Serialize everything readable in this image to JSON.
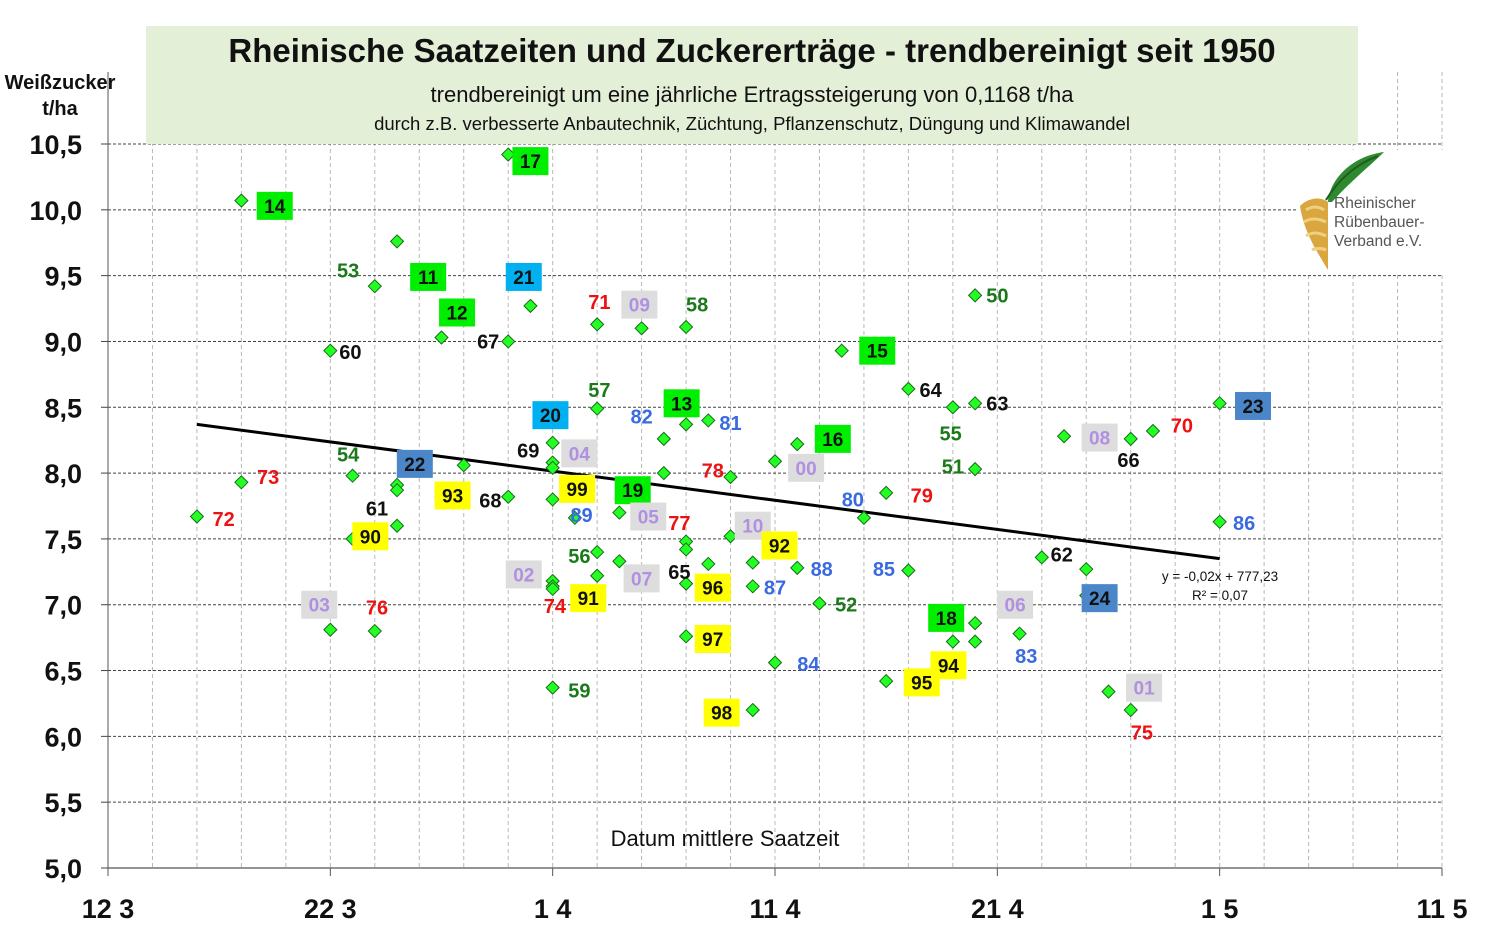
{
  "title": "Rheinische Saatzeiten und Zuckererträge - trendbereinigt seit 1950",
  "subtitle1": "trendbereinigt um eine jährliche Ertragssteigerung von 0,1168 t/ha",
  "subtitle2": "durch z.B. verbesserte Anbautechnik, Züchtung, Pflanzenschutz, Düngung und Klimawandel",
  "ylabel_line1": "Weißzucker",
  "ylabel_line2": "t/ha",
  "xlabel": "Datum mittlere Saatzeit",
  "equation": "y = -0,02x + 777,23",
  "r_squared": "R² = 0,07",
  "logo": {
    "line1": "Rheinischer",
    "line2": "Rübenbauer-",
    "line3": "Verband e.V."
  },
  "colors": {
    "marker": "#22ff22",
    "trend": "#000000",
    "red": "#ee1111",
    "green": "#1a7a1a",
    "blue": "#3a6ae0",
    "black": "#111111",
    "lavender": "#b090e0",
    "yellow_box": "#ffff00",
    "green_box": "#00ee00",
    "cyan_box": "#00b0f0",
    "steel_box": "#4a86c8",
    "gray_box": "#dddddd"
  },
  "chart_data": {
    "type": "scatter",
    "x_unit": "days after 12 March",
    "xlim": [
      0,
      60
    ],
    "ylim": [
      5.0,
      10.5
    ],
    "x_ticks": [
      {
        "x": 0,
        "label": "12 3"
      },
      {
        "x": 10,
        "label": "22 3"
      },
      {
        "x": 20,
        "label": "1 4"
      },
      {
        "x": 30,
        "label": "11 4"
      },
      {
        "x": 40,
        "label": "21 4"
      },
      {
        "x": 50,
        "label": "1 5"
      },
      {
        "x": 60,
        "label": "11 5"
      }
    ],
    "y_ticks": [
      "5,0",
      "5,5",
      "6,0",
      "6,5",
      "7,0",
      "7,5",
      "8,0",
      "8,5",
      "9,0",
      "9,5",
      "10,0",
      "10,5"
    ],
    "trendline": {
      "x": [
        4,
        50
      ],
      "y": [
        8.37,
        7.35
      ]
    },
    "points": [
      {
        "x": 18.0,
        "y": 10.42,
        "label": "17",
        "style": "green_box",
        "lx": 19.0,
        "ly": 10.37
      },
      {
        "x": 6.0,
        "y": 10.07,
        "label": "14",
        "style": "green_box",
        "lx": 7.5,
        "ly": 10.03
      },
      {
        "x": 13.0,
        "y": 9.76,
        "label": "",
        "style": "none",
        "lx": 0,
        "ly": 0
      },
      {
        "x": 12.0,
        "y": 9.42,
        "label": "53",
        "style": "green",
        "lx": 10.8,
        "ly": 9.54
      },
      {
        "x": 14.0,
        "y": 9.49,
        "label": "11",
        "style": "green_box",
        "lx": 14.4,
        "ly": 9.49
      },
      {
        "x": 19.0,
        "y": 9.27,
        "label": "21",
        "style": "cyan_box",
        "lx": 18.7,
        "ly": 9.49
      },
      {
        "x": 10.0,
        "y": 8.93,
        "label": "60",
        "style": "black",
        "lx": 10.9,
        "ly": 8.92
      },
      {
        "x": 15.0,
        "y": 9.03,
        "label": "12",
        "style": "green_box",
        "lx": 15.7,
        "ly": 9.22
      },
      {
        "x": 18.0,
        "y": 9.0,
        "label": "67",
        "style": "black",
        "lx": 17.1,
        "ly": 9.0
      },
      {
        "x": 22.0,
        "y": 9.13,
        "label": "71",
        "style": "red",
        "lx": 22.1,
        "ly": 9.3
      },
      {
        "x": 24.0,
        "y": 9.1,
        "label": "09",
        "style": "gray_box",
        "lx": 23.9,
        "ly": 9.28
      },
      {
        "x": 26.0,
        "y": 9.11,
        "label": "58",
        "style": "green",
        "lx": 26.5,
        "ly": 9.28
      },
      {
        "x": 33.0,
        "y": 8.93,
        "label": "15",
        "style": "green_box",
        "lx": 34.6,
        "ly": 8.93
      },
      {
        "x": 39.0,
        "y": 9.35,
        "label": "50",
        "style": "green",
        "lx": 40.0,
        "ly": 9.35
      },
      {
        "x": 36.0,
        "y": 8.64,
        "label": "64",
        "style": "black",
        "lx": 37.0,
        "ly": 8.63
      },
      {
        "x": 38.0,
        "y": 8.5,
        "label": "55",
        "style": "green",
        "lx": 37.9,
        "ly": 8.3
      },
      {
        "x": 39.0,
        "y": 8.53,
        "label": "63",
        "style": "black",
        "lx": 40.0,
        "ly": 8.53
      },
      {
        "x": 22.0,
        "y": 8.49,
        "label": "57",
        "style": "green",
        "lx": 22.1,
        "ly": 8.63
      },
      {
        "x": 26.0,
        "y": 8.37,
        "label": "13",
        "style": "green_box",
        "lx": 25.8,
        "ly": 8.53
      },
      {
        "x": 27.0,
        "y": 8.4,
        "label": "81",
        "style": "blue",
        "lx": 28.0,
        "ly": 8.38
      },
      {
        "x": 25.0,
        "y": 8.26,
        "label": "82",
        "style": "blue",
        "lx": 24.0,
        "ly": 8.43
      },
      {
        "x": 20.0,
        "y": 8.23,
        "label": "20",
        "style": "cyan_box",
        "lx": 19.9,
        "ly": 8.44
      },
      {
        "x": 31.0,
        "y": 8.22,
        "label": "16",
        "style": "green_box",
        "lx": 32.6,
        "ly": 8.26
      },
      {
        "x": 20.0,
        "y": 8.08,
        "label": "69",
        "style": "black",
        "lx": 18.9,
        "ly": 8.17
      },
      {
        "x": 20.0,
        "y": 8.04,
        "label": "04",
        "style": "gray_box",
        "lx": 21.2,
        "ly": 8.15
      },
      {
        "x": 30.0,
        "y": 8.09,
        "label": "00",
        "style": "gray_box",
        "lx": 31.4,
        "ly": 8.04
      },
      {
        "x": 43.0,
        "y": 8.28,
        "label": "08",
        "style": "gray_box",
        "lx": 44.6,
        "ly": 8.27
      },
      {
        "x": 46.0,
        "y": 8.26,
        "label": "66",
        "style": "black",
        "lx": 45.9,
        "ly": 8.1
      },
      {
        "x": 47.0,
        "y": 8.32,
        "label": "70",
        "style": "red",
        "lx": 48.3,
        "ly": 8.36
      },
      {
        "x": 50.0,
        "y": 8.53,
        "label": "23",
        "style": "steel_box",
        "lx": 51.5,
        "ly": 8.51
      },
      {
        "x": 39.0,
        "y": 8.03,
        "label": "51",
        "style": "green",
        "lx": 38.0,
        "ly": 8.05
      },
      {
        "x": 25.0,
        "y": 8.0,
        "label": "",
        "style": "none",
        "lx": 0,
        "ly": 0
      },
      {
        "x": 6.0,
        "y": 7.93,
        "label": "73",
        "style": "red",
        "lx": 7.2,
        "ly": 7.97
      },
      {
        "x": 11.0,
        "y": 7.98,
        "label": "54",
        "style": "green",
        "lx": 10.8,
        "ly": 8.14
      },
      {
        "x": 16.0,
        "y": 8.06,
        "label": "22",
        "style": "steel_box",
        "lx": 13.8,
        "ly": 8.07
      },
      {
        "x": 13.0,
        "y": 7.91,
        "label": "",
        "style": "none",
        "lx": 0,
        "ly": 0
      },
      {
        "x": 13.0,
        "y": 7.87,
        "label": "61",
        "style": "black",
        "lx": 12.1,
        "ly": 7.73
      },
      {
        "x": 18.0,
        "y": 7.82,
        "label": "68",
        "style": "black",
        "lx": 17.2,
        "ly": 7.79
      },
      {
        "x": 15.0,
        "y": 7.82,
        "label": "93",
        "style": "yellow_box",
        "lx": 15.5,
        "ly": 7.83
      },
      {
        "x": 20.0,
        "y": 7.8,
        "label": "99",
        "style": "yellow_box",
        "lx": 21.1,
        "ly": 7.88
      },
      {
        "x": 24.0,
        "y": 7.82,
        "label": "19",
        "style": "green_box",
        "lx": 23.6,
        "ly": 7.87
      },
      {
        "x": 28.0,
        "y": 7.97,
        "label": "78",
        "style": "red",
        "lx": 27.2,
        "ly": 8.02
      },
      {
        "x": 35.0,
        "y": 7.85,
        "label": "79",
        "style": "red",
        "lx": 36.6,
        "ly": 7.83
      },
      {
        "x": 34.0,
        "y": 7.66,
        "label": "80",
        "style": "blue",
        "lx": 33.5,
        "ly": 7.8
      },
      {
        "x": 4.0,
        "y": 7.67,
        "label": "72",
        "style": "red",
        "lx": 5.2,
        "ly": 7.65
      },
      {
        "x": 13.0,
        "y": 7.6,
        "label": "",
        "style": "none",
        "lx": 0,
        "ly": 0
      },
      {
        "x": 11.0,
        "y": 7.5,
        "label": "90",
        "style": "yellow_box",
        "lx": 11.8,
        "ly": 7.52
      },
      {
        "x": 21.0,
        "y": 7.66,
        "label": "89",
        "style": "blue",
        "lx": 21.3,
        "ly": 7.68
      },
      {
        "x": 23.0,
        "y": 7.7,
        "label": "05",
        "style": "gray_box",
        "lx": 24.3,
        "ly": 7.67
      },
      {
        "x": 26.0,
        "y": 7.48,
        "label": "77",
        "style": "red",
        "lx": 25.7,
        "ly": 7.62
      },
      {
        "x": 26.0,
        "y": 7.42,
        "label": "",
        "style": "none",
        "lx": 0,
        "ly": 0
      },
      {
        "x": 28.0,
        "y": 7.52,
        "label": "10",
        "style": "gray_box",
        "lx": 29.0,
        "ly": 7.6
      },
      {
        "x": 30.0,
        "y": 7.48,
        "label": "92",
        "style": "yellow_box",
        "lx": 30.2,
        "ly": 7.45
      },
      {
        "x": 50.0,
        "y": 7.63,
        "label": "86",
        "style": "blue",
        "lx": 51.1,
        "ly": 7.62
      },
      {
        "x": 22.0,
        "y": 7.4,
        "label": "56",
        "style": "green",
        "lx": 21.2,
        "ly": 7.37
      },
      {
        "x": 23.0,
        "y": 7.33,
        "label": "",
        "style": "none",
        "lx": 0,
        "ly": 0
      },
      {
        "x": 22.0,
        "y": 7.22,
        "label": "",
        "style": "none",
        "lx": 0,
        "ly": 0
      },
      {
        "x": 27.0,
        "y": 7.31,
        "label": "65",
        "style": "black",
        "lx": 25.7,
        "ly": 7.25
      },
      {
        "x": 24.0,
        "y": 7.2,
        "label": "07",
        "style": "gray_box",
        "lx": 24.0,
        "ly": 7.2
      },
      {
        "x": 29.0,
        "y": 7.32,
        "label": "",
        "style": "none",
        "lx": 0,
        "ly": 0
      },
      {
        "x": 31.0,
        "y": 7.28,
        "label": "88",
        "style": "blue",
        "lx": 32.1,
        "ly": 7.27
      },
      {
        "x": 36.0,
        "y": 7.26,
        "label": "85",
        "style": "blue",
        "lx": 34.9,
        "ly": 7.27
      },
      {
        "x": 42.0,
        "y": 7.36,
        "label": "62",
        "style": "black",
        "lx": 42.9,
        "ly": 7.38
      },
      {
        "x": 44.0,
        "y": 7.27,
        "label": "",
        "style": "none",
        "lx": 0,
        "ly": 0
      },
      {
        "x": 20.0,
        "y": 7.18,
        "label": "02",
        "style": "gray_box",
        "lx": 18.7,
        "ly": 7.23
      },
      {
        "x": 20.0,
        "y": 7.14,
        "label": "74",
        "style": "red",
        "lx": 20.1,
        "ly": 6.99
      },
      {
        "x": 20.0,
        "y": 7.12,
        "label": "91",
        "style": "yellow_box",
        "lx": 21.6,
        "ly": 7.05
      },
      {
        "x": 26.0,
        "y": 7.16,
        "label": "96",
        "style": "yellow_box",
        "lx": 27.2,
        "ly": 7.13
      },
      {
        "x": 29.0,
        "y": 7.14,
        "label": "87",
        "style": "blue",
        "lx": 30.0,
        "ly": 7.13
      },
      {
        "x": 32.0,
        "y": 7.01,
        "label": "52",
        "style": "green",
        "lx": 33.2,
        "ly": 7.0
      },
      {
        "x": 44.0,
        "y": 7.07,
        "label": "24",
        "style": "steel_box",
        "lx": 44.6,
        "ly": 7.05
      },
      {
        "x": 10.0,
        "y": 6.81,
        "label": "03",
        "style": "gray_box",
        "lx": 9.5,
        "ly": 7.0
      },
      {
        "x": 12.0,
        "y": 6.8,
        "label": "76",
        "style": "red",
        "lx": 12.1,
        "ly": 6.98
      },
      {
        "x": 26.0,
        "y": 6.76,
        "label": "97",
        "style": "yellow_box",
        "lx": 27.2,
        "ly": 6.74
      },
      {
        "x": 39.0,
        "y": 6.86,
        "label": "06",
        "style": "gray_box",
        "lx": 40.8,
        "ly": 7.0
      },
      {
        "x": 38.0,
        "y": 6.91,
        "label": "18",
        "style": "green_box",
        "lx": 37.7,
        "ly": 6.9
      },
      {
        "x": 38.0,
        "y": 6.72,
        "label": "",
        "style": "none",
        "lx": 0,
        "ly": 0
      },
      {
        "x": 39.0,
        "y": 6.72,
        "label": "",
        "style": "none",
        "lx": 0,
        "ly": 0
      },
      {
        "x": 41.0,
        "y": 6.78,
        "label": "83",
        "style": "blue",
        "lx": 41.3,
        "ly": 6.61
      },
      {
        "x": 30.0,
        "y": 6.56,
        "label": "84",
        "style": "blue",
        "lx": 31.5,
        "ly": 6.55
      },
      {
        "x": 38.0,
        "y": 6.55,
        "label": "94",
        "style": "yellow_box",
        "lx": 37.8,
        "ly": 6.54
      },
      {
        "x": 20.0,
        "y": 6.37,
        "label": "59",
        "style": "green",
        "lx": 21.2,
        "ly": 6.35
      },
      {
        "x": 35.0,
        "y": 6.42,
        "label": "95",
        "style": "yellow_box",
        "lx": 36.6,
        "ly": 6.41
      },
      {
        "x": 45.0,
        "y": 6.34,
        "label": "01",
        "style": "gray_box",
        "lx": 46.6,
        "ly": 6.37
      },
      {
        "x": 46.0,
        "y": 6.2,
        "label": "75",
        "style": "red",
        "lx": 46.5,
        "ly": 6.03
      },
      {
        "x": 29.0,
        "y": 6.2,
        "label": "98",
        "style": "yellow_box",
        "lx": 27.6,
        "ly": 6.18
      }
    ]
  }
}
